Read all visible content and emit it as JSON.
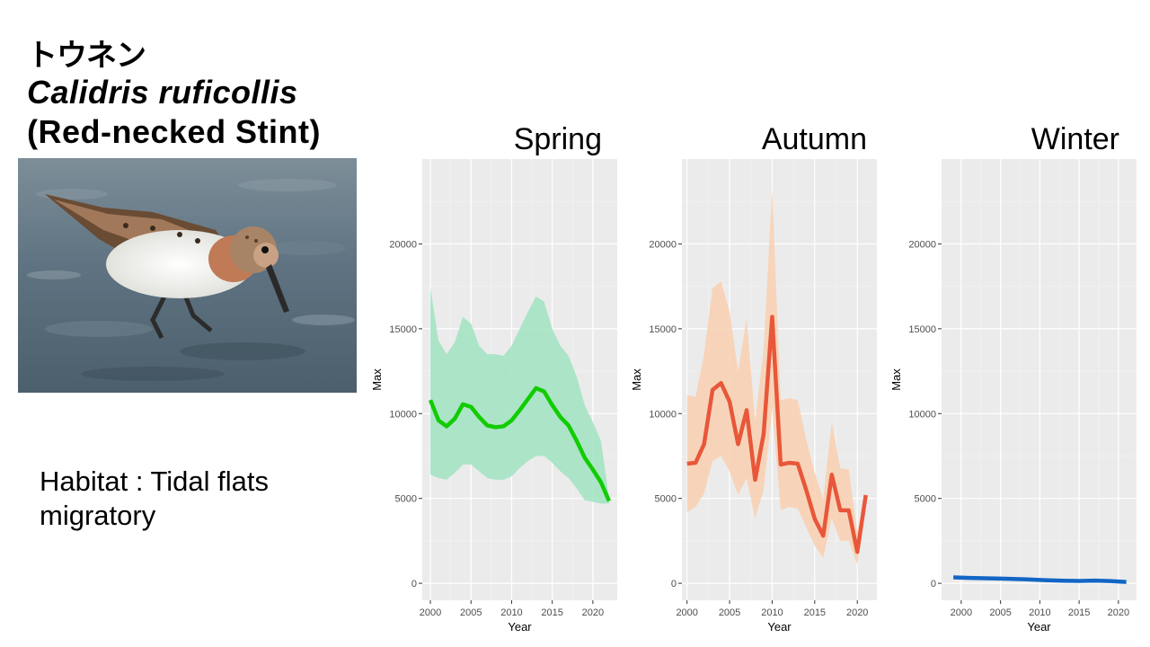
{
  "header": {
    "japanese_name": "トウネン",
    "scientific_name": "Calidris ruficollis",
    "english_name": "(Red-necked Stint)"
  },
  "habitat": {
    "line1": "Habitat : Tidal flats",
    "line2": "migratory"
  },
  "photo": {
    "subject": "red-necked-stint-bird-photo"
  },
  "chart_data": [
    {
      "type": "line",
      "title": "Spring",
      "xlabel": "Year",
      "ylabel": "Max",
      "xlim": [
        1999,
        2023
      ],
      "ylim": [
        -1000,
        25000
      ],
      "xticks": [
        2000,
        2005,
        2010,
        2015,
        2020
      ],
      "yticks": [
        0,
        5000,
        10000,
        15000,
        20000
      ],
      "line_color": "#11cc00",
      "band_color": "#a5e3c4",
      "x": [
        2000,
        2001,
        2002,
        2003,
        2004,
        2005,
        2006,
        2007,
        2008,
        2009,
        2010,
        2011,
        2012,
        2013,
        2014,
        2015,
        2016,
        2017,
        2018,
        2019,
        2020,
        2021,
        2022
      ],
      "values": [
        10800,
        9600,
        9250,
        9700,
        10550,
        10400,
        9800,
        9300,
        9200,
        9250,
        9600,
        10200,
        10850,
        11500,
        11300,
        10500,
        9800,
        9300,
        8400,
        7400,
        6700,
        5950,
        4850
      ],
      "upper": [
        17400,
        14300,
        13500,
        14200,
        15700,
        15300,
        14000,
        13500,
        13500,
        13400,
        14000,
        15000,
        16000,
        16900,
        16600,
        15000,
        14000,
        13400,
        12200,
        10500,
        9500,
        8400,
        5000
      ],
      "lower": [
        6400,
        6200,
        6100,
        6500,
        7000,
        7000,
        6600,
        6200,
        6100,
        6100,
        6300,
        6800,
        7200,
        7500,
        7500,
        7100,
        6600,
        6200,
        5600,
        4900,
        4800,
        4700,
        4700
      ]
    },
    {
      "type": "line",
      "title": "Autumn",
      "xlabel": "Year",
      "ylabel": "Max",
      "xlim": [
        1999.4,
        2022.3
      ],
      "ylim": [
        -1000,
        25000
      ],
      "xticks": [
        2000,
        2005,
        2010,
        2015,
        2020
      ],
      "yticks": [
        0,
        5000,
        10000,
        15000,
        20000
      ],
      "line_color": "#e8573a",
      "band_color": "#f8d2b4",
      "x": [
        2000,
        2001,
        2002,
        2003,
        2004,
        2005,
        2006,
        2007,
        2008,
        2009,
        2010,
        2011,
        2012,
        2013,
        2014,
        2015,
        2016,
        2017,
        2018,
        2019,
        2020,
        2021
      ],
      "values": [
        7050,
        7100,
        8200,
        11400,
        11800,
        10700,
        8200,
        10200,
        6100,
        8800,
        15700,
        7000,
        7100,
        7050,
        5500,
        3800,
        2800,
        6400,
        4300,
        4300,
        1850,
        5200
      ],
      "upper": [
        11100,
        11000,
        13500,
        17400,
        17800,
        16000,
        12500,
        15600,
        9600,
        13800,
        23200,
        10800,
        10900,
        10800,
        8500,
        6500,
        5000,
        9500,
        6800,
        6700,
        3000,
        5300
      ],
      "lower": [
        4200,
        4500,
        5300,
        7200,
        7500,
        6600,
        5200,
        6200,
        3800,
        5500,
        10300,
        4300,
        4500,
        4400,
        3300,
        2200,
        1500,
        3800,
        2500,
        2500,
        1100,
        4900
      ]
    },
    {
      "type": "line",
      "title": "Winter",
      "xlabel": "Year",
      "ylabel": "Max",
      "xlim": [
        1997.5,
        2022.3
      ],
      "ylim": [
        -1000,
        25000
      ],
      "xticks": [
        2000,
        2005,
        2010,
        2015,
        2020
      ],
      "yticks": [
        0,
        5000,
        10000,
        15000,
        20000
      ],
      "line_color": "#1266c4",
      "band_color": "#9ec6ea",
      "x": [
        1999,
        2001,
        2003,
        2005,
        2007,
        2009,
        2011,
        2013,
        2015,
        2017,
        2019,
        2021
      ],
      "values": [
        350,
        320,
        300,
        280,
        250,
        220,
        180,
        150,
        140,
        160,
        130,
        80
      ],
      "upper": [
        420,
        390,
        370,
        350,
        320,
        290,
        250,
        220,
        210,
        230,
        200,
        150
      ],
      "lower": [
        280,
        250,
        230,
        210,
        180,
        150,
        110,
        80,
        70,
        90,
        60,
        10
      ]
    }
  ]
}
